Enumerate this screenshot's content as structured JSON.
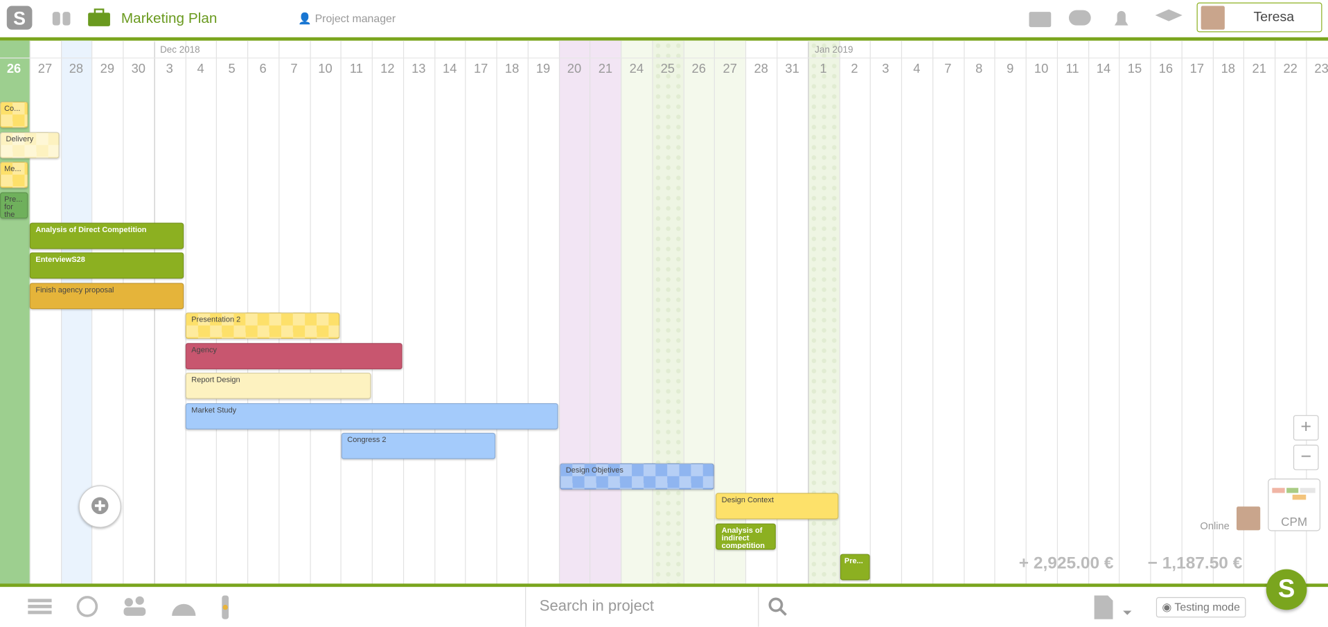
{
  "header": {
    "title": "Marketing Plan",
    "role": "Project manager",
    "user": "Teresa"
  },
  "timeline": {
    "months": [
      "Dec 2018",
      "Jan 2019"
    ],
    "days": [
      26,
      27,
      28,
      29,
      30,
      3,
      4,
      5,
      6,
      7,
      10,
      11,
      12,
      13,
      14,
      17,
      18,
      19,
      20,
      21,
      24,
      25,
      26,
      27,
      28,
      31,
      1,
      2,
      3,
      4,
      7,
      8,
      9,
      10,
      11,
      14,
      15,
      16,
      17,
      18,
      21,
      22,
      23
    ]
  },
  "tasks": [
    {
      "label": "Co..."
    },
    {
      "label": "Delivery"
    },
    {
      "label": "Me..."
    },
    {
      "label": "Pre... for the"
    },
    {
      "label": "Analysis of Direct Competition"
    },
    {
      "label": "EnterviewS28"
    },
    {
      "label": "Finish agency proposal"
    },
    {
      "label": "Presentation 2"
    },
    {
      "label": "Agency"
    },
    {
      "label": "Report Design"
    },
    {
      "label": "Market Study"
    },
    {
      "label": "Congress 2"
    },
    {
      "label": "Design Objetives"
    },
    {
      "label": "Design Context"
    },
    {
      "label": "Analysis of indirect competition"
    },
    {
      "label": "Pre..."
    }
  ],
  "widgets": {
    "cpm": "CPM",
    "status": "Online",
    "income": "2,925.00 €",
    "expense": "1,187.50 €"
  },
  "footer": {
    "search_placeholder": "Search in project",
    "testing_mode": "Testing mode"
  }
}
